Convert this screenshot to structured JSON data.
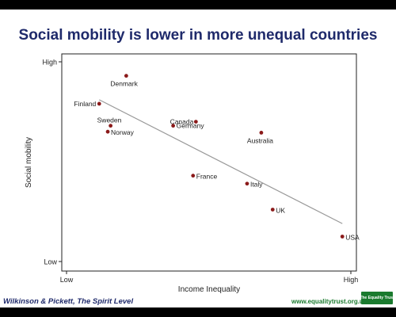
{
  "title": "Social mobility is lower in more unequal countries",
  "footer": {
    "citation": "Wilkinson & Pickett, The Spirit Level",
    "url": "www.equalitytrust.org.uk",
    "logo_text": "The Equality Trust"
  },
  "colors": {
    "title": "#1f2a6b",
    "point": "#8b1a1a",
    "trend": "#999999",
    "url": "#1a7a2e"
  },
  "chart_data": {
    "type": "scatter",
    "xlabel": "Income Inequality",
    "ylabel": "Social mobility",
    "x_ticks": [
      {
        "value": 0,
        "label": "Low"
      },
      {
        "value": 100,
        "label": "High"
      }
    ],
    "y_ticks": [
      {
        "value": 0,
        "label": "Low"
      },
      {
        "value": 100,
        "label": "High"
      }
    ],
    "xlim": [
      0,
      100
    ],
    "ylim": [
      0,
      100
    ],
    "grid": false,
    "points": [
      {
        "label": "Denmark",
        "x": 21,
        "y": 93
      },
      {
        "label": "Finland",
        "x": 11.5,
        "y": 79
      },
      {
        "label": "Sweden",
        "x": 15.5,
        "y": 68
      },
      {
        "label": "Norway",
        "x": 14.5,
        "y": 65
      },
      {
        "label": "Canada",
        "x": 45.5,
        "y": 70
      },
      {
        "label": "Germany",
        "x": 37.5,
        "y": 68
      },
      {
        "label": "Australia",
        "x": 68.5,
        "y": 64.5
      },
      {
        "label": "France",
        "x": 44.5,
        "y": 43
      },
      {
        "label": "Italy",
        "x": 63.5,
        "y": 39
      },
      {
        "label": "UK",
        "x": 72.5,
        "y": 26
      },
      {
        "label": "USA",
        "x": 97,
        "y": 12.5
      }
    ],
    "trend_line": {
      "x": [
        11.5,
        97
      ],
      "y": [
        81,
        19
      ]
    }
  }
}
